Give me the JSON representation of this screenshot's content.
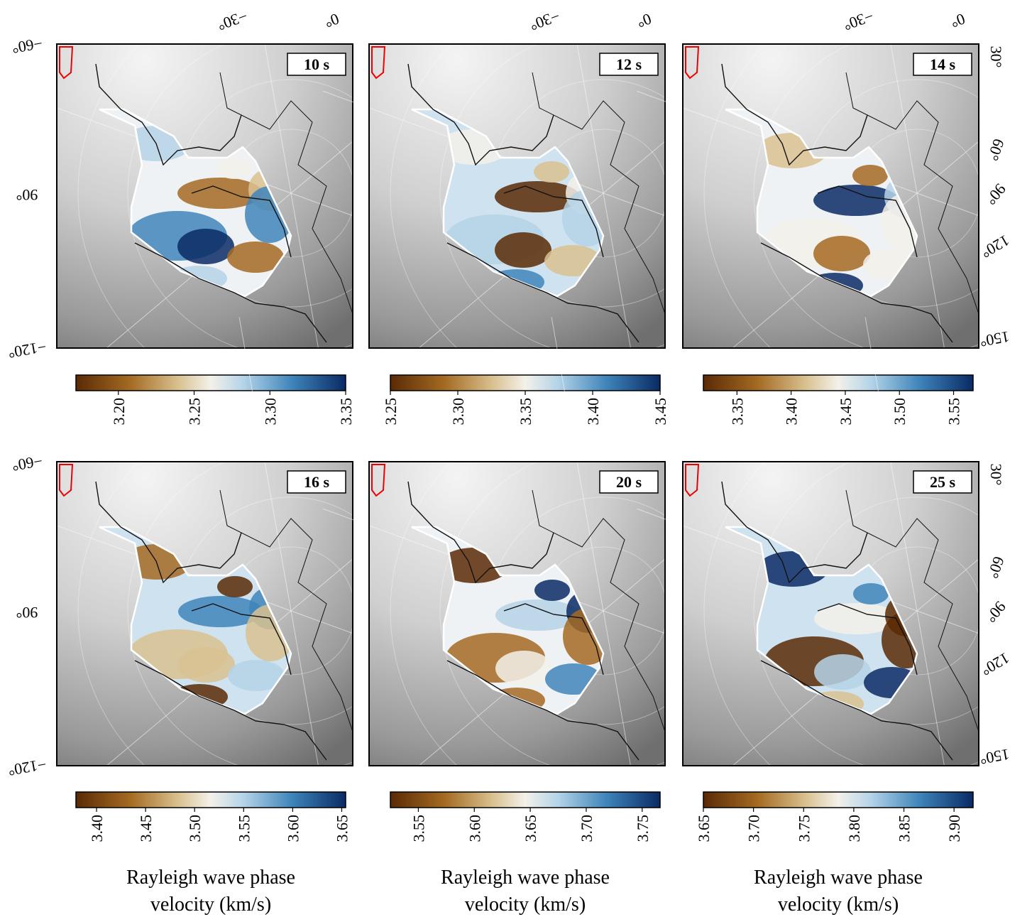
{
  "panels": [
    {
      "label": "10 s",
      "colorbar": {
        "lim": [
          3.172,
          3.35
        ],
        "ticks": [
          {
            "value": 3.2,
            "label": "3.20"
          },
          3.25,
          {
            "value": 3.3,
            "label": "3.30"
          },
          3.35
        ]
      }
    },
    {
      "label": "12 s",
      "colorbar": {
        "lim": [
          3.25,
          3.45
        ],
        "ticks": [
          3.25,
          {
            "value": 3.3,
            "label": "3.30"
          },
          3.35,
          {
            "value": 3.4,
            "label": "3.40"
          },
          3.45
        ]
      }
    },
    {
      "label": "14 s",
      "colorbar": {
        "lim": [
          3.319,
          3.568
        ],
        "ticks": [
          3.35,
          {
            "value": 3.4,
            "label": "3.40"
          },
          3.45,
          {
            "value": 3.5,
            "label": "3.50"
          },
          3.55
        ]
      }
    },
    {
      "label": "16 s",
      "colorbar": {
        "lim": [
          3.379,
          3.654
        ],
        "ticks": [
          {
            "value": 3.4,
            "label": "3.40"
          },
          3.45,
          {
            "value": 3.5,
            "label": "3.50"
          },
          3.55,
          {
            "value": 3.6,
            "label": "3.60"
          },
          3.65
        ]
      }
    },
    {
      "label": "20 s",
      "colorbar": {
        "lim": [
          3.525,
          3.766
        ],
        "ticks": [
          3.55,
          {
            "value": 3.6,
            "label": "3.60"
          },
          3.65,
          {
            "value": 3.7,
            "label": "3.70"
          },
          3.75
        ]
      }
    },
    {
      "label": "25 s",
      "colorbar": {
        "lim": [
          3.65,
          3.919
        ],
        "ticks": [
          3.65,
          {
            "value": 3.7,
            "label": "3.70"
          },
          3.75,
          {
            "value": 3.8,
            "label": "3.80"
          },
          3.85,
          {
            "value": 3.9,
            "label": "3.90"
          }
        ]
      }
    }
  ],
  "map_labels": {
    "top": [
      "−30°",
      "0°"
    ],
    "left": [
      "−60°",
      "90°",
      "−120°"
    ],
    "right": [
      "30°",
      "60°",
      "90°",
      "120°",
      "150°"
    ]
  },
  "colorbar_label": [
    "Rayleigh wave phase",
    "velocity (km/s)"
  ]
}
